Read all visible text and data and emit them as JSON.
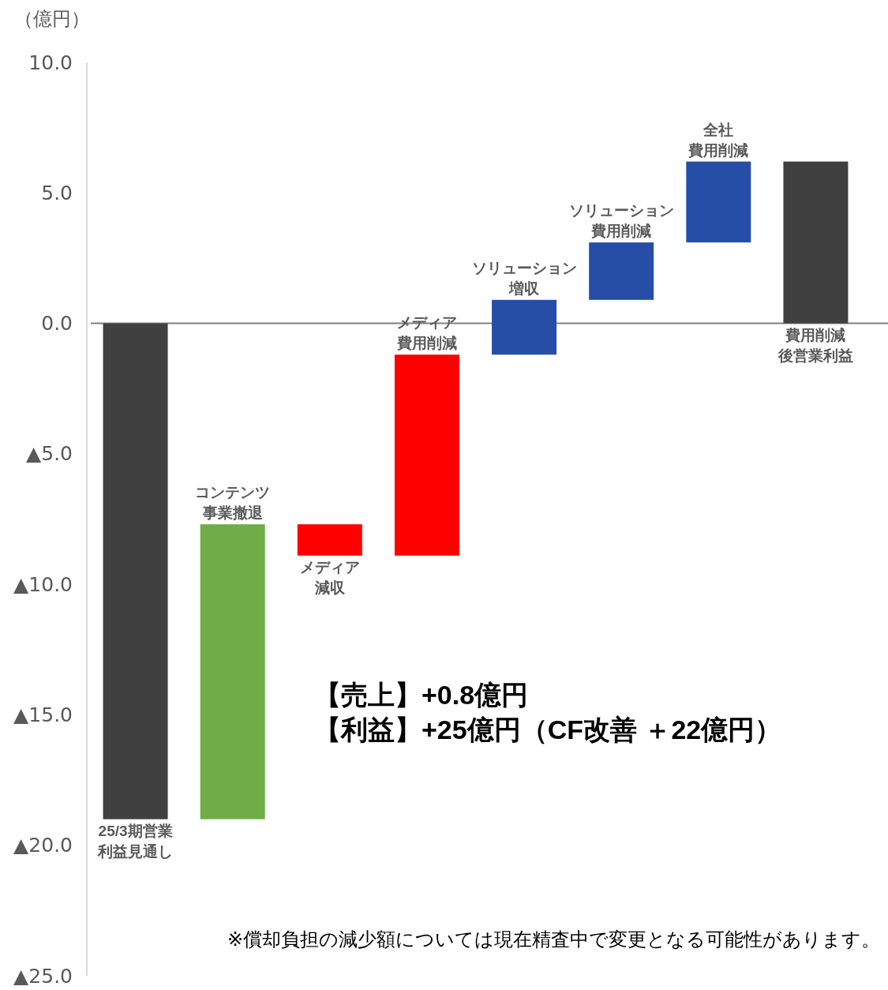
{
  "chart_data": {
    "type": "bar",
    "ylabel": "（億円）",
    "categories": [
      "25/3期営業利益見通し",
      "コンテンツ事業撤退",
      "メディア減収",
      "メディア費用削減",
      "ソリューション増収",
      "ソリューション費用削減",
      "全社費用削減",
      "費用削減後営業利益"
    ],
    "values": [
      -19.0,
      11.3,
      -1.2,
      7.7,
      2.1,
      2.2,
      3.1,
      6.2
    ],
    "base": [
      0,
      -19.0,
      -7.7,
      -8.9,
      -1.2,
      0.9,
      3.1,
      0
    ],
    "colors": [
      "#404040",
      "#70ad47",
      "#ff0000",
      "#ff0000",
      "#264ea6",
      "#264ea6",
      "#264ea6",
      "#404040"
    ],
    "ylim": [
      -25,
      10
    ],
    "yticks": [
      {
        "value": 10,
        "label": "10.0"
      },
      {
        "value": 5,
        "label": "5.0"
      },
      {
        "value": 0,
        "label": "0.0"
      },
      {
        "value": -5,
        "label": "▲5.0"
      },
      {
        "value": -10,
        "label": "▲10.0"
      },
      {
        "value": -15,
        "label": "▲15.0"
      },
      {
        "value": -20,
        "label": "▲20.0"
      },
      {
        "value": -25,
        "label": "▲25.0"
      }
    ],
    "annotations": [
      "【売上】+0.8億円",
      "【利益】+25億円（CF改善 ＋22億円）",
      "※償却負担の減少額については現在精査中で変更となる可能性があります。"
    ]
  }
}
